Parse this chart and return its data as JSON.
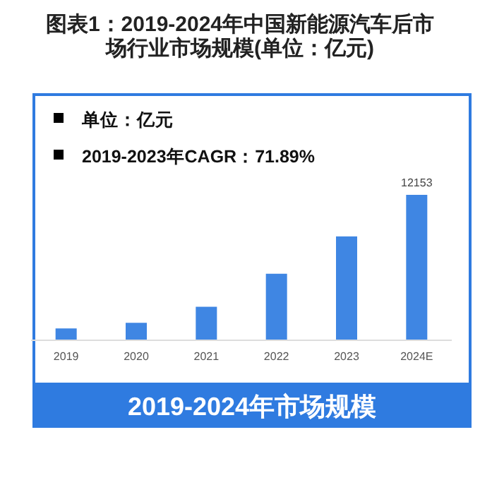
{
  "chart_data": {
    "type": "bar",
    "title": "图表1：2019-2024年中国新能源汽车后市场行业市场规模(单位：亿元)",
    "categories": [
      "2019",
      "2020",
      "2021",
      "2022",
      "2023",
      "2024E"
    ],
    "values": [
      990,
      1460,
      2800,
      5560,
      8680,
      12153
    ],
    "value_labels": [
      null,
      null,
      null,
      null,
      null,
      "12153"
    ],
    "color": "#3f86e3",
    "annotations": [
      "单位：亿元",
      "2019-2023年CAGR：71.89%",
      "2019-2024年市场规模"
    ]
  }
}
